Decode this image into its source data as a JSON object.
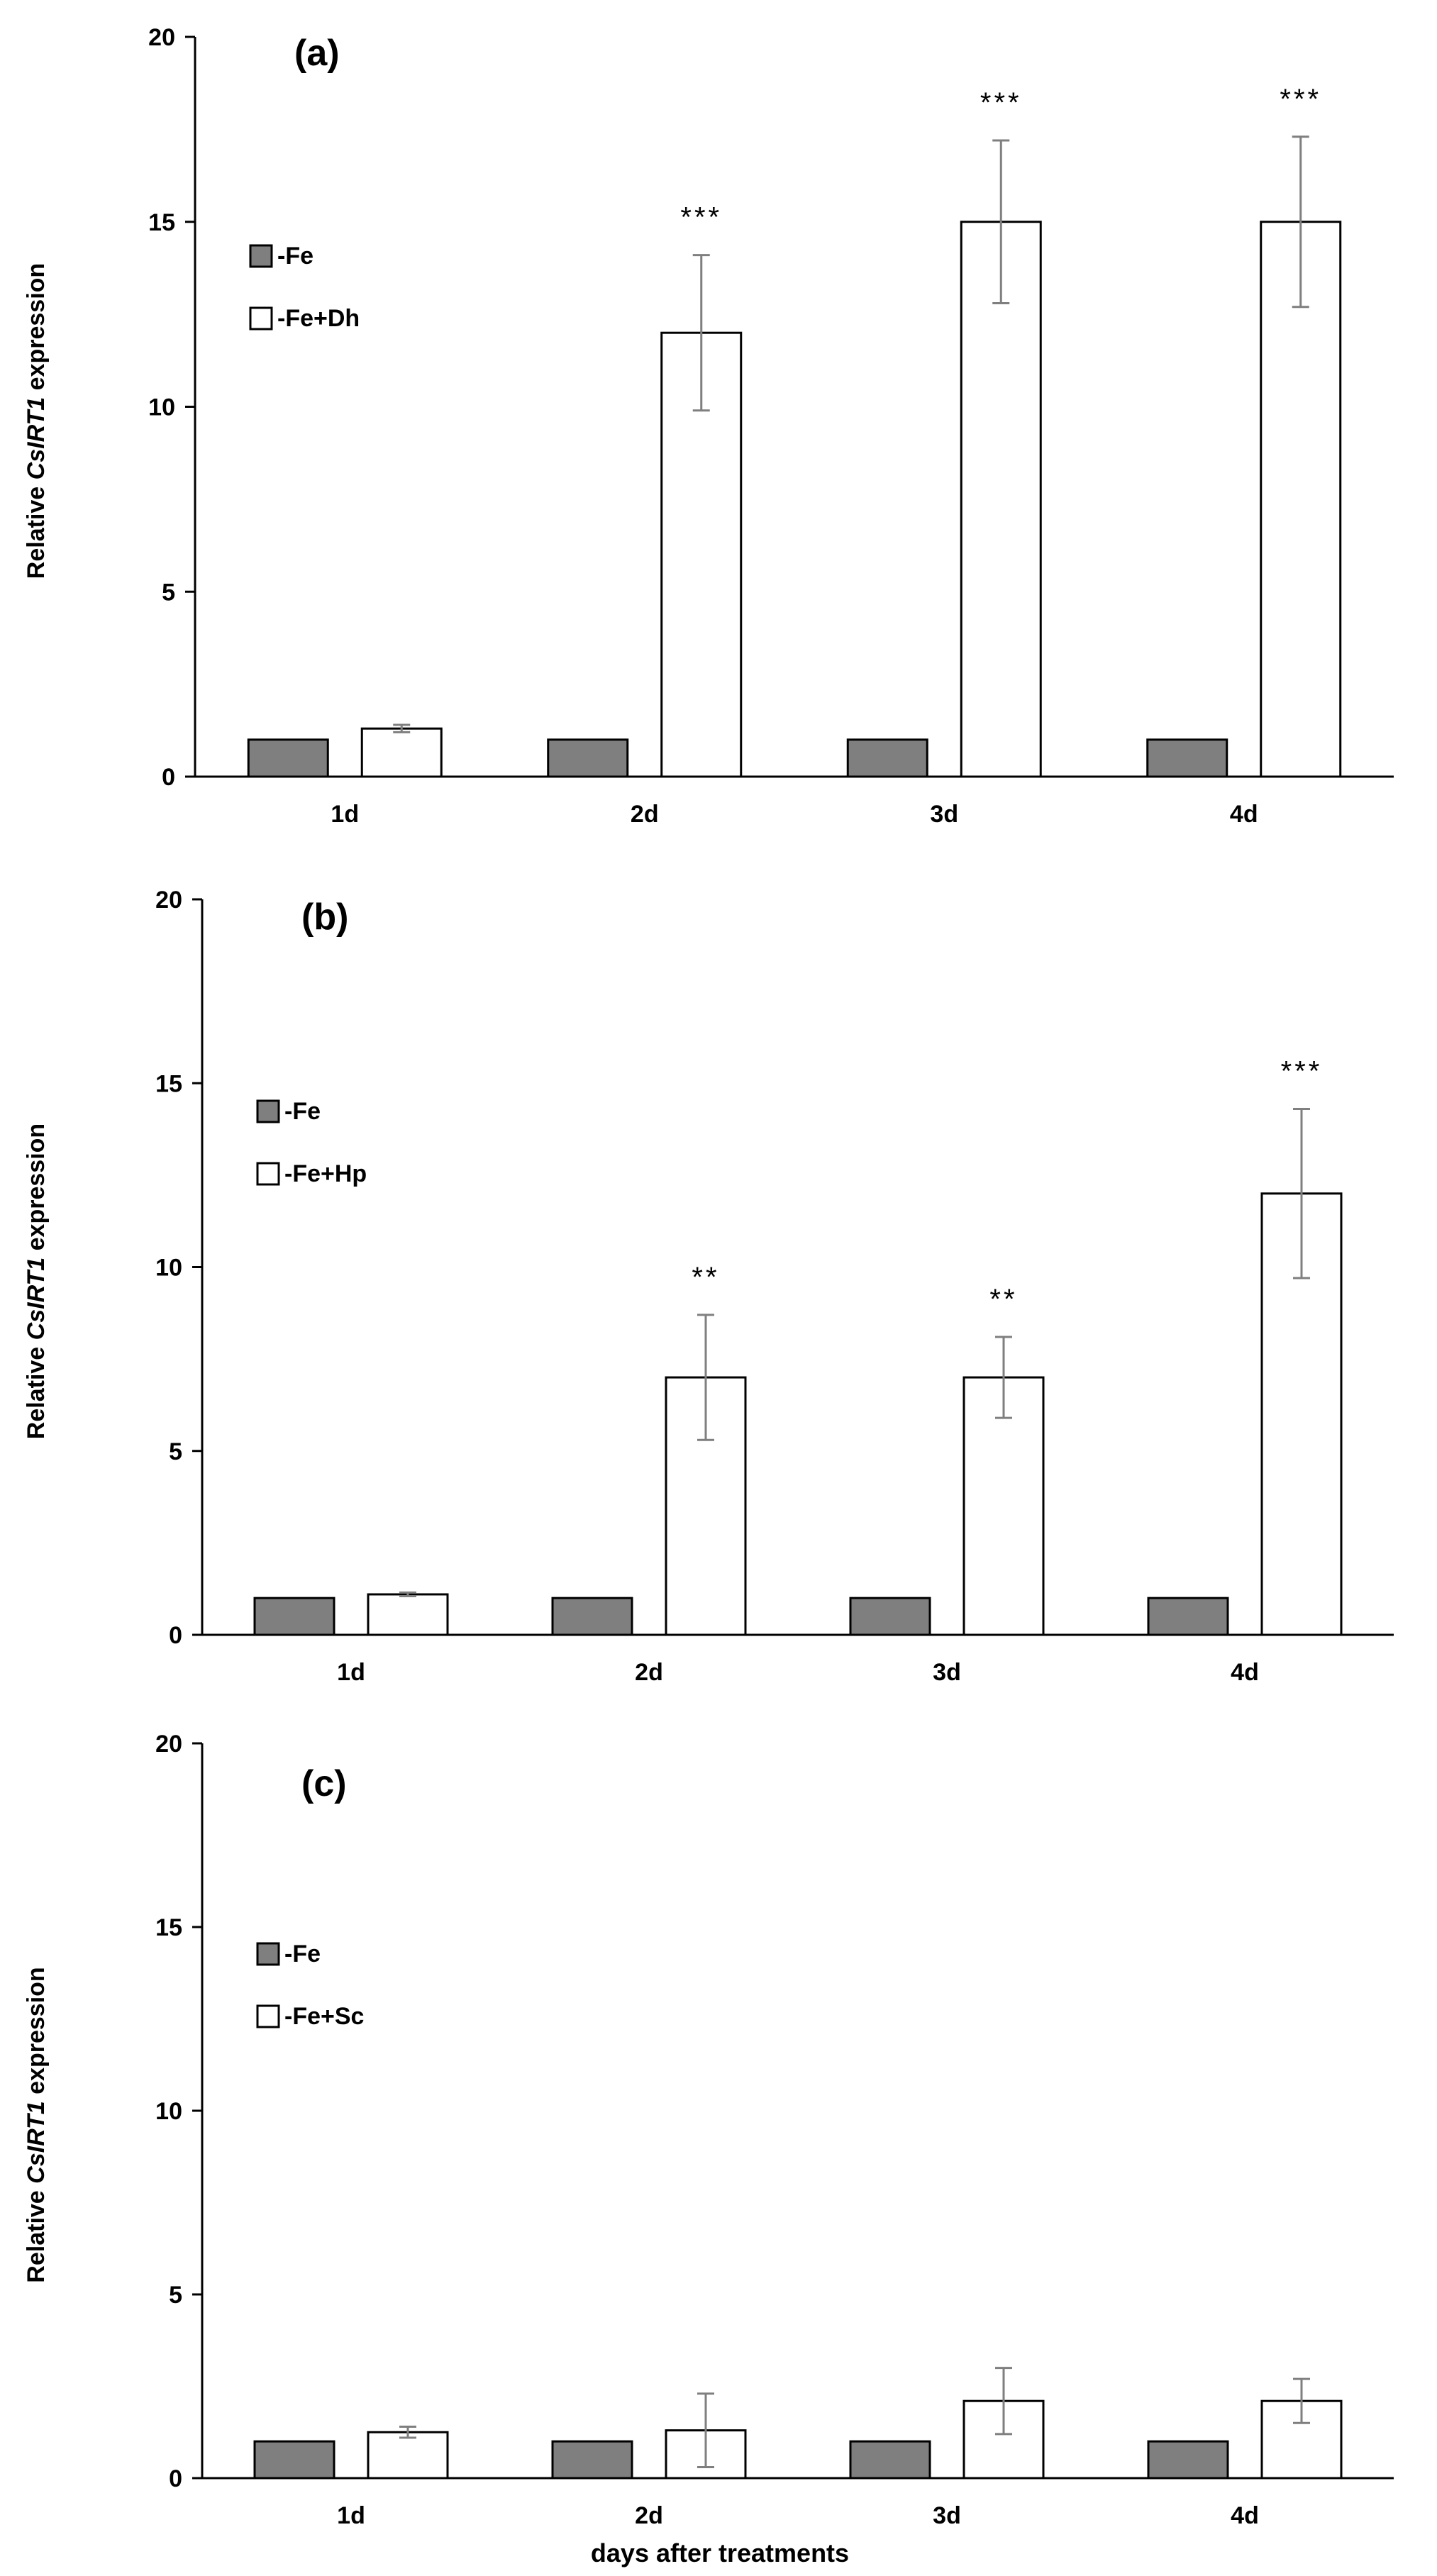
{
  "colors": {
    "fe": "#7f7f7f",
    "treat": "#ffffff",
    "stroke": "#000000",
    "errorbar": "#7f7f7f",
    "axis": "#000000"
  },
  "xlabel": "days after treatments",
  "chart_data": [
    {
      "type": "bar",
      "panel_label": "(a)",
      "ylabel_prefix": "Relative ",
      "ylabel_italic": "CsIRT1",
      "ylabel_suffix": " expression",
      "ylim": [
        0,
        20
      ],
      "yticks": [
        0,
        5,
        10,
        15,
        20
      ],
      "categories": [
        "1d",
        "2d",
        "3d",
        "4d"
      ],
      "series": [
        {
          "name": "-Fe",
          "values": [
            1,
            1,
            1,
            1
          ],
          "errors": [
            0,
            0,
            0,
            0
          ]
        },
        {
          "name": "-Fe+Dh",
          "values": [
            1.3,
            12,
            15,
            15
          ],
          "errors": [
            0.1,
            2.1,
            2.2,
            2.3
          ]
        }
      ],
      "significance": [
        "",
        "***",
        "***",
        "***"
      ],
      "legend_position": "upper-left"
    },
    {
      "type": "bar",
      "panel_label": "(b)",
      "ylabel_prefix": "Relative ",
      "ylabel_italic": "CsIRT1",
      "ylabel_suffix": " expression",
      "ylim": [
        0,
        20
      ],
      "yticks": [
        0,
        5,
        10,
        15,
        20
      ],
      "categories": [
        "1d",
        "2d",
        "3d",
        "4d"
      ],
      "series": [
        {
          "name": "-Fe",
          "values": [
            1,
            1,
            1,
            1
          ],
          "errors": [
            0,
            0,
            0,
            0
          ]
        },
        {
          "name": "-Fe+Hp",
          "values": [
            1.1,
            7,
            7,
            12
          ],
          "errors": [
            0.05,
            1.7,
            1.1,
            2.3
          ]
        }
      ],
      "significance": [
        "",
        "**",
        "**",
        "***"
      ],
      "legend_position": "upper-left"
    },
    {
      "type": "bar",
      "panel_label": "(c)",
      "ylabel_prefix": "Relative ",
      "ylabel_italic": "CsIRT1",
      "ylabel_suffix": " expression",
      "ylim": [
        0,
        20
      ],
      "yticks": [
        0,
        5,
        10,
        15,
        20
      ],
      "categories": [
        "1d",
        "2d",
        "3d",
        "4d"
      ],
      "series": [
        {
          "name": "-Fe",
          "values": [
            1,
            1,
            1,
            1
          ],
          "errors": [
            0,
            0,
            0,
            0
          ]
        },
        {
          "name": "-Fe+Sc",
          "values": [
            1.25,
            1.3,
            2.1,
            2.1
          ],
          "errors": [
            0.15,
            1.0,
            0.9,
            0.6
          ]
        }
      ],
      "significance": [
        "",
        "",
        "",
        ""
      ],
      "legend_position": "upper-left"
    }
  ]
}
